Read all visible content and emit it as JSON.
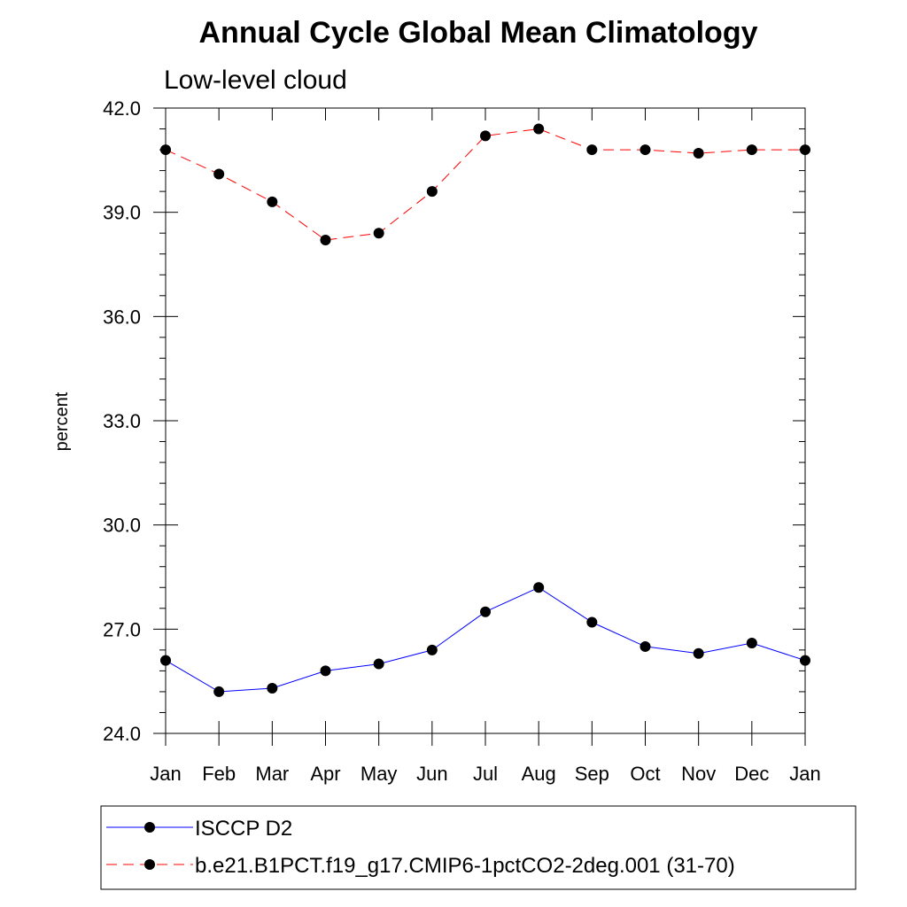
{
  "chart_data": {
    "type": "line",
    "title": "Annual Cycle Global Mean Climatology",
    "subtitle": "Low-level cloud",
    "ylabel": "percent",
    "xlabel": "",
    "categories": [
      "Jan",
      "Feb",
      "Mar",
      "Apr",
      "May",
      "Jun",
      "Jul",
      "Aug",
      "Sep",
      "Oct",
      "Nov",
      "Dec",
      "Jan"
    ],
    "ylim": [
      24.0,
      42.0
    ],
    "yticks": [
      "24.0",
      "27.0",
      "30.0",
      "33.0",
      "36.0",
      "39.0",
      "42.0"
    ],
    "grid": false,
    "legend_position": "bottom",
    "series": [
      {
        "name": "ISCCP D2",
        "color": "#0000ff",
        "line_style": "solid",
        "marker": "filled-circle",
        "values": [
          26.1,
          25.2,
          25.3,
          25.8,
          26.0,
          26.4,
          27.5,
          28.2,
          27.2,
          26.5,
          26.3,
          26.6,
          26.1
        ]
      },
      {
        "name": "b.e21.B1PCT.f19_g17.CMIP6-1pctCO2-2deg.001 (31-70)",
        "color": "#ff0000",
        "line_style": "dashed",
        "marker": "filled-circle",
        "values": [
          40.8,
          40.1,
          39.3,
          38.2,
          38.4,
          39.6,
          41.2,
          41.4,
          40.8,
          40.8,
          40.7,
          40.8,
          40.8
        ]
      }
    ]
  }
}
